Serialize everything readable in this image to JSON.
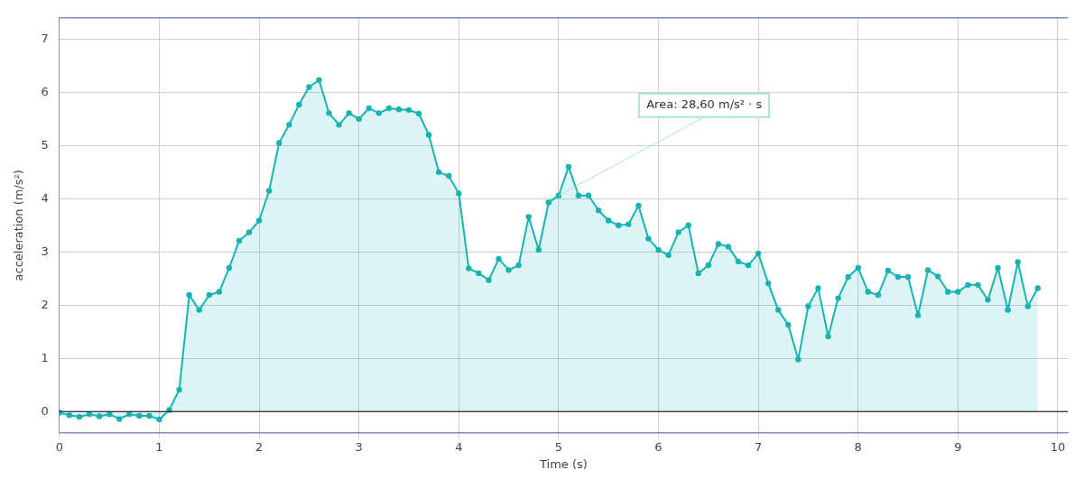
{
  "chart_data": {
    "type": "area",
    "xlabel": "Time (s)",
    "ylabel": "acceleration (m/s²)",
    "x": [
      0,
      0.1,
      0.2,
      0.3,
      0.4,
      0.5,
      0.6,
      0.7,
      0.8,
      0.9,
      1,
      1.1,
      1.2,
      1.3,
      1.4,
      1.5,
      1.6,
      1.7,
      1.8,
      1.9,
      2,
      2.1,
      2.2,
      2.3,
      2.4,
      2.5,
      2.6,
      2.7,
      2.8,
      2.9,
      3,
      3.1,
      3.2,
      3.3,
      3.4,
      3.5,
      3.6,
      3.7,
      3.8,
      3.9,
      4,
      4.1,
      4.2,
      4.3,
      4.4,
      4.5,
      4.6,
      4.7,
      4.8,
      4.9,
      5,
      5.1,
      5.2,
      5.3,
      5.4,
      5.5,
      5.6,
      5.7,
      5.8,
      5.9,
      6,
      6.1,
      6.2,
      6.3,
      6.4,
      6.5,
      6.6,
      6.7,
      6.8,
      6.9,
      7,
      7.1,
      7.2,
      7.3,
      7.4,
      7.5,
      7.6,
      7.7,
      7.8,
      7.9,
      8,
      8.1,
      8.2,
      8.3,
      8.4,
      8.5,
      8.6,
      8.7,
      8.8,
      8.9,
      9,
      9.1,
      9.2,
      9.3,
      9.4,
      9.5,
      9.6,
      9.7,
      9.8
    ],
    "series": [
      {
        "color": "#17b3b3",
        "values": [
          -0.02,
          -0.07,
          -0.1,
          -0.05,
          -0.09,
          -0.05,
          -0.14,
          -0.05,
          -0.08,
          -0.08,
          -0.15,
          0.03,
          0.41,
          2.19,
          1.91,
          2.19,
          2.25,
          2.7,
          3.21,
          3.37,
          3.59,
          4.15,
          5.05,
          5.39,
          5.77,
          6.1,
          6.23,
          5.61,
          5.39,
          5.61,
          5.5,
          5.7,
          5.61,
          5.7,
          5.68,
          5.67,
          5.6,
          5.2,
          4.5,
          4.43,
          4.1,
          2.69,
          2.6,
          2.47,
          2.87,
          2.66,
          2.75,
          3.66,
          3.04,
          3.93,
          4.06,
          4.6,
          4.06,
          4.06,
          3.78,
          3.59,
          3.5,
          3.52,
          3.87,
          3.25,
          3.04,
          2.94,
          3.37,
          3.5,
          2.6,
          2.75,
          3.15,
          3.1,
          2.82,
          2.75,
          2.97,
          2.41,
          1.91,
          1.63,
          0.98,
          1.98,
          2.32,
          1.41,
          2.13,
          2.53,
          2.7,
          2.25,
          2.19,
          2.65,
          2.53,
          2.53,
          1.81,
          2.66,
          2.54,
          2.25,
          2.25,
          2.38,
          2.38,
          2.1,
          2.7,
          1.91,
          2.81,
          1.98,
          2.32
        ]
      }
    ],
    "xlim": [
      0,
      10.1
    ],
    "xticks": [
      0,
      1,
      2,
      3,
      4,
      5,
      6,
      7,
      8,
      9,
      10
    ],
    "ylim": [
      -0.4,
      7.4
    ],
    "yticks": [
      0,
      1,
      2,
      3,
      4,
      5,
      6,
      7
    ],
    "grid": true,
    "legend": false,
    "marker": "circle",
    "line_style": "solid",
    "ref_lines": [
      {
        "axis": "y",
        "value": 0,
        "color": "#000000"
      }
    ],
    "annotations": [
      {
        "text": "Area: 28,60 m/s² · s",
        "x": 5,
        "y": 4.06
      }
    ]
  }
}
